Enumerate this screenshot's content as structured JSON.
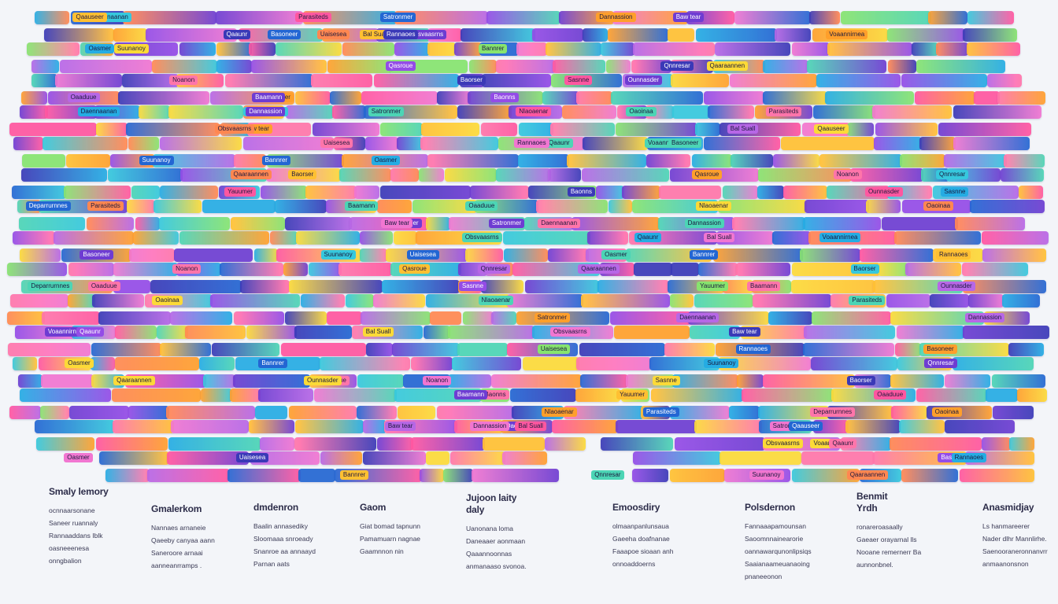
{
  "palette": [
    "#f25c9c",
    "#ff7aa8",
    "#f6a13c",
    "#ffc145",
    "#f7d94c",
    "#5ad1b5",
    "#45c4d6",
    "#33a9d9",
    "#2b65c4",
    "#3b3aa8",
    "#6a3fc1",
    "#8e4fd6",
    "#b06ad9",
    "#8fe07a",
    "#f68a5b",
    "#e57ac9"
  ],
  "chip_labels": [
    "Parasiteds",
    "Daennaanan",
    "Dannassion",
    "Satronmer",
    "Qaauseer",
    "Baw tear",
    "Bal Suall",
    "Obsvaasrns",
    "Voaannirnea",
    "Qaaunr",
    "Uaisesea",
    "Basoneer",
    "Rannaoes",
    "Oasmer",
    "Suunanoy",
    "Bannrer",
    "Qnnresar",
    "Qaaraannen",
    "Qasroue",
    "Baorser",
    "Noanon",
    "Ounnasder",
    "Sasnne",
    "Yauumer",
    "Baonns",
    "Oaaduue",
    "Baamann",
    "Deparrurnnes",
    "Nlaoaenar",
    "Oaoinaa"
  ],
  "legend": [
    {
      "title": "Smaly lemory",
      "lines": [
        "ocnnaarsonane",
        "Saneer ruannaly",
        "Rannaaddans Iblk",
        "oasneeenesa",
        "onngbalion"
      ]
    },
    {
      "title": "Gmalerkom",
      "lines": [
        "Nannaes arnaneie",
        "Qaeeby canyaa aann",
        "Saneroore arnaai",
        "aanneanrramps ."
      ]
    },
    {
      "title": "dmdenron",
      "lines": [
        "Baalin annasediky",
        "Sloomaaa snroeady",
        "Snanroe aa annaayd",
        "Parnan aats"
      ]
    },
    {
      "title": "Gaom",
      "lines": [
        "Giat bomad tapnunn",
        "Pamamuarn nagnae",
        "Gaamnnon nin"
      ]
    },
    {
      "title": "Jujoon laity daly",
      "lines": [
        "Uanonana loma",
        "Daneaaer aonmaan",
        "Qaaannoonnas",
        "anmanaaso svonoa."
      ]
    },
    {
      "title": "Emoosdiry",
      "lines": [
        "olmaanpanlunsaua",
        "Gaeeha doafnanae",
        "Faaapoe sioaan anh",
        "onnoaddoerns"
      ]
    },
    {
      "title": "Polsdernon",
      "lines": [
        "Fannaaapamounsan",
        "Saoomnnainearorie",
        "oannawarqunonlipsiqs",
        "Saaianaameuanaoing",
        "pnaneeonon"
      ]
    },
    {
      "title": "Benmit Yrdh",
      "lines": [
        "ronareroasaally",
        "Gaeaer orayarnal lls",
        "Nooane remernerr Ba",
        "aunnonbnel."
      ]
    },
    {
      "title": "Anasmidjay",
      "lines": [
        "Ls hanmareerer",
        "Nader dlhr Mannlirhe.",
        "Saenooraneronnanvrr",
        "anmaanonsnon"
      ]
    }
  ]
}
